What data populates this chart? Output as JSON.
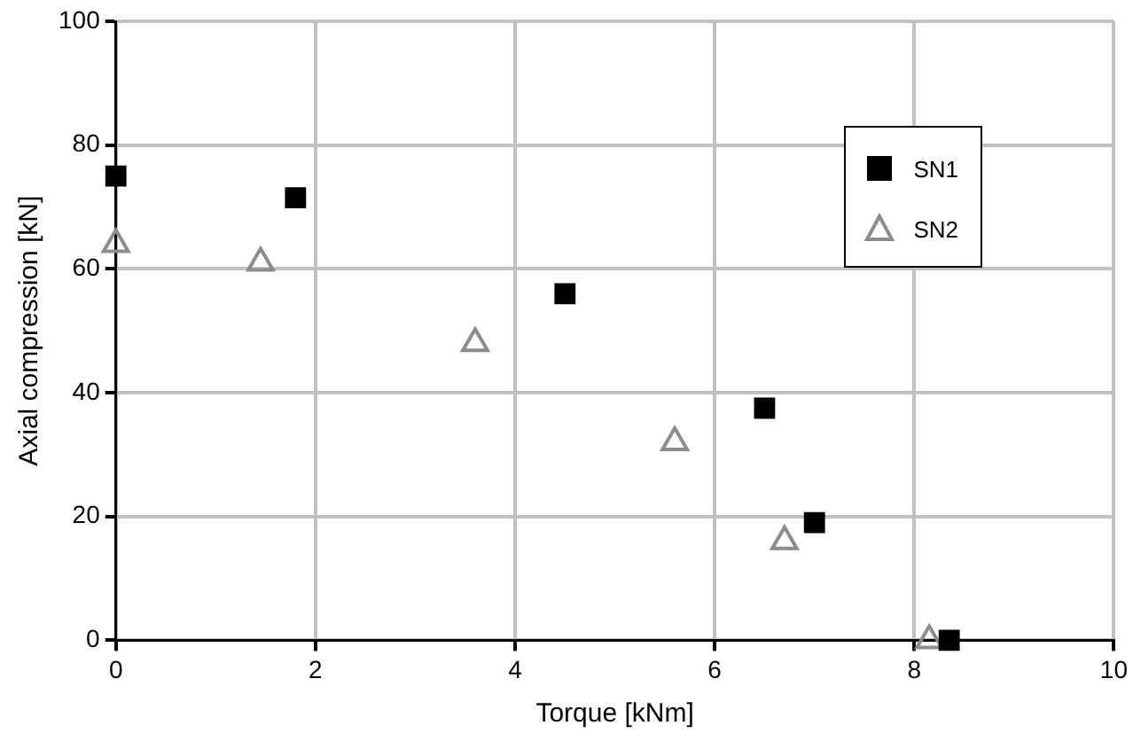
{
  "chart_data": {
    "type": "scatter",
    "xlabel": "Torque [kNm]",
    "ylabel": "Axial compression [kN]",
    "xlim": [
      0,
      10
    ],
    "xticks": [
      0,
      2,
      4,
      6,
      8,
      10
    ],
    "ylim": [
      0,
      100
    ],
    "yticks": [
      0,
      20,
      40,
      60,
      80,
      100
    ],
    "grid": true,
    "legend": "top right",
    "series": [
      {
        "name": "SN1",
        "color": "#000000",
        "marker": "square",
        "x": [
          0,
          1.8,
          4.5,
          6.5,
          7,
          8.35
        ],
        "values": [
          75,
          71.5,
          56,
          37.5,
          19,
          0
        ]
      },
      {
        "name": "SN2",
        "color": "#8c8c8c",
        "marker": "triangle",
        "x": [
          0,
          1.45,
          3.6,
          5.6,
          6.7,
          8.15
        ],
        "values": [
          64,
          61,
          48,
          32,
          16,
          0
        ]
      }
    ]
  }
}
